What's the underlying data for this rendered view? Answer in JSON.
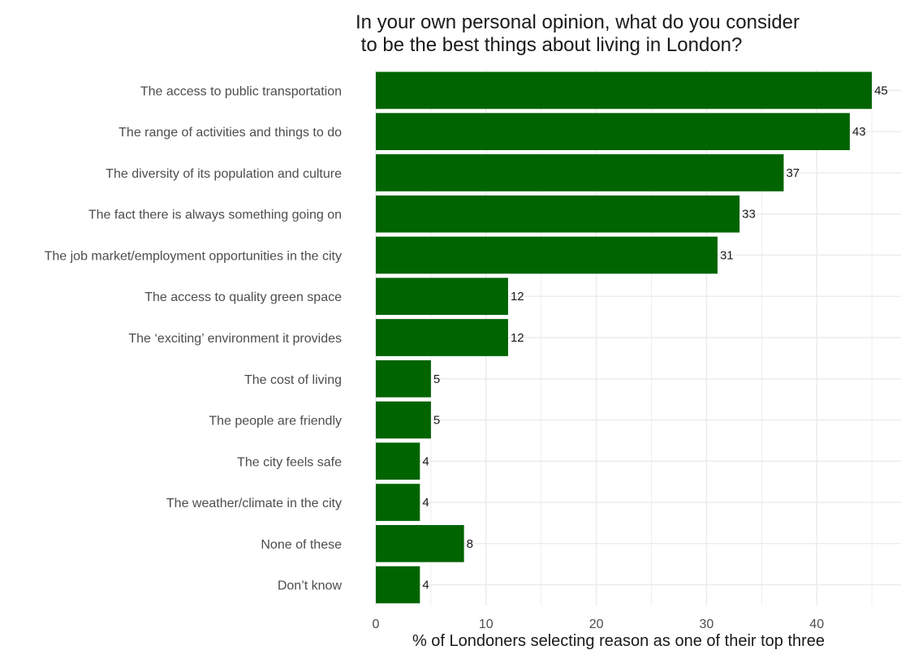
{
  "chart_data": {
    "type": "bar",
    "orientation": "horizontal",
    "title": "In your own personal opinion, what do you consider\n to be the best things about living in London?",
    "xlabel": "% of Londoners selecting reason as one of their top three",
    "ylabel": "",
    "categories": [
      "The access to public transportation",
      "The range of activities and things to do",
      "The diversity of its population and culture",
      "The fact there is always something going on",
      "The job market/employment opportunities in the city",
      "The access to quality green space",
      "The ‘exciting’ environment it provides",
      "The cost of living",
      "The people are friendly",
      "The city feels safe",
      "The weather/climate in the city",
      "None of these",
      "Don’t know"
    ],
    "values": [
      45,
      43,
      37,
      33,
      31,
      12,
      12,
      5,
      5,
      4,
      4,
      8,
      4
    ],
    "xlim": [
      0,
      46
    ],
    "xticks": [
      0,
      10,
      20,
      30,
      40
    ],
    "bar_color": "#006400",
    "grid": true,
    "legend": "none"
  }
}
